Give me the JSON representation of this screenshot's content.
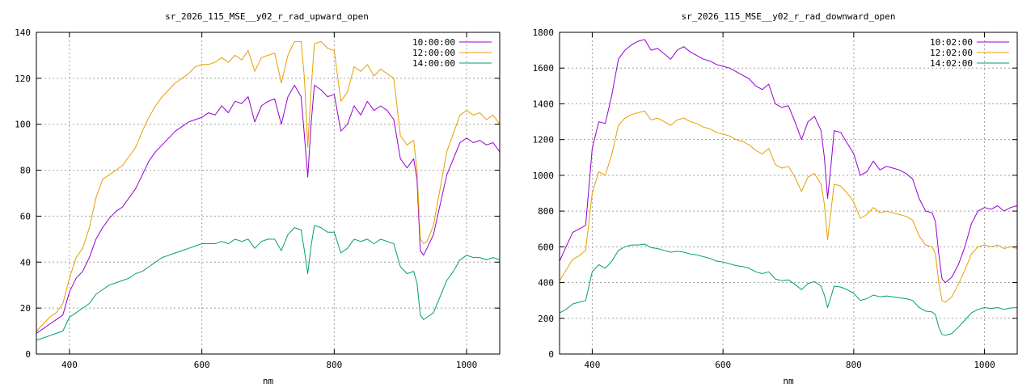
{
  "chart_data": [
    {
      "type": "line",
      "title": "sr_2026_115_MSE__y02_r_rad_upward_open",
      "xlabel": "nm",
      "ylabel": "",
      "xlim": [
        350,
        1050
      ],
      "ylim": [
        0,
        140
      ],
      "xticks": [
        400,
        600,
        800,
        1000
      ],
      "yticks": [
        0,
        20,
        40,
        60,
        80,
        100,
        120,
        140
      ],
      "grid": true,
      "legend_position": "top-right",
      "x": [
        350,
        360,
        370,
        380,
        390,
        400,
        410,
        420,
        430,
        440,
        450,
        460,
        470,
        480,
        490,
        500,
        510,
        520,
        530,
        540,
        550,
        560,
        570,
        580,
        590,
        600,
        610,
        620,
        630,
        640,
        650,
        660,
        670,
        680,
        690,
        700,
        710,
        720,
        730,
        740,
        750,
        755,
        760,
        765,
        770,
        780,
        790,
        800,
        810,
        820,
        830,
        840,
        850,
        860,
        870,
        880,
        890,
        900,
        910,
        920,
        925,
        930,
        935,
        940,
        950,
        960,
        970,
        980,
        990,
        1000,
        1010,
        1020,
        1030,
        1040,
        1050
      ],
      "series": [
        {
          "name": "10:00:00",
          "color": "#9400d3",
          "values": [
            9,
            11,
            13,
            15,
            17,
            27,
            33,
            36,
            42,
            50,
            55,
            59,
            62,
            64,
            68,
            72,
            78,
            84,
            88,
            91,
            94,
            97,
            99,
            101,
            102,
            103,
            105,
            104,
            108,
            105,
            110,
            109,
            112,
            101,
            108,
            110,
            111,
            100,
            112,
            117,
            112,
            95,
            77,
            100,
            117,
            115,
            112,
            113,
            97,
            100,
            108,
            104,
            110,
            106,
            108,
            106,
            102,
            85,
            81,
            85,
            76,
            45,
            43,
            46,
            52,
            65,
            78,
            85,
            92,
            94,
            92,
            93,
            91,
            92,
            88
          ]
        },
        {
          "name": "12:00:00",
          "color": "#e69f00",
          "values": [
            10,
            13,
            16,
            18,
            22,
            33,
            42,
            46,
            55,
            68,
            76,
            78,
            80,
            82,
            86,
            90,
            97,
            103,
            108,
            112,
            115,
            118,
            120,
            122,
            125,
            126,
            126,
            127,
            129,
            127,
            130,
            128,
            132,
            123,
            129,
            130,
            131,
            118,
            130,
            136,
            136,
            120,
            90,
            115,
            135,
            136,
            133,
            132,
            110,
            114,
            125,
            123,
            126,
            121,
            124,
            122,
            120,
            95,
            91,
            93,
            80,
            50,
            48,
            49,
            56,
            72,
            88,
            96,
            104,
            106,
            104,
            105,
            102,
            104,
            100
          ]
        },
        {
          "name": "14:00:00",
          "color": "#009e73",
          "values": [
            6,
            7,
            8,
            9,
            10,
            16,
            18,
            20,
            22,
            26,
            28,
            30,
            31,
            32,
            33,
            35,
            36,
            38,
            40,
            42,
            43,
            44,
            45,
            46,
            47,
            48,
            48,
            48,
            49,
            48,
            50,
            49,
            50,
            46,
            49,
            50,
            50,
            45,
            52,
            55,
            54,
            45,
            35,
            47,
            56,
            55,
            53,
            53,
            44,
            46,
            50,
            49,
            50,
            48,
            50,
            49,
            48,
            38,
            35,
            36,
            31,
            17,
            15,
            16,
            18,
            25,
            32,
            36,
            41,
            43,
            42,
            42,
            41,
            42,
            41
          ]
        }
      ]
    },
    {
      "type": "line",
      "title": "sr_2026_115_MSE__y02_r_rad_downward_open",
      "xlabel": "nm",
      "ylabel": "",
      "xlim": [
        350,
        1050
      ],
      "ylim": [
        0,
        1800
      ],
      "xticks": [
        400,
        600,
        800,
        1000
      ],
      "yticks": [
        0,
        200,
        400,
        600,
        800,
        1000,
        1200,
        1400,
        1600,
        1800
      ],
      "grid": true,
      "legend_position": "top-right",
      "x": [
        350,
        360,
        370,
        380,
        390,
        400,
        410,
        420,
        430,
        440,
        450,
        460,
        470,
        480,
        490,
        500,
        510,
        520,
        530,
        540,
        550,
        560,
        570,
        580,
        590,
        600,
        610,
        620,
        630,
        640,
        650,
        660,
        670,
        680,
        690,
        700,
        710,
        720,
        730,
        740,
        750,
        755,
        760,
        765,
        770,
        780,
        790,
        800,
        810,
        820,
        830,
        840,
        850,
        860,
        870,
        880,
        890,
        900,
        910,
        920,
        925,
        930,
        935,
        940,
        950,
        960,
        970,
        980,
        990,
        1000,
        1010,
        1020,
        1030,
        1040,
        1050
      ],
      "series": [
        {
          "name": "10:02:00",
          "color": "#9400d3",
          "values": [
            520,
            600,
            680,
            700,
            720,
            1150,
            1300,
            1290,
            1450,
            1650,
            1700,
            1730,
            1750,
            1760,
            1700,
            1710,
            1680,
            1650,
            1700,
            1720,
            1690,
            1670,
            1650,
            1640,
            1620,
            1610,
            1600,
            1580,
            1560,
            1540,
            1500,
            1480,
            1510,
            1400,
            1380,
            1390,
            1300,
            1200,
            1300,
            1330,
            1250,
            1100,
            870,
            1050,
            1250,
            1240,
            1180,
            1120,
            1000,
            1020,
            1080,
            1030,
            1050,
            1040,
            1030,
            1010,
            980,
            870,
            800,
            790,
            740,
            560,
            420,
            400,
            430,
            500,
            600,
            730,
            800,
            820,
            810,
            830,
            800,
            820,
            830
          ]
        },
        {
          "name": "12:02:00",
          "color": "#e69f00",
          "values": [
            410,
            470,
            530,
            550,
            580,
            900,
            1020,
            1000,
            1120,
            1280,
            1320,
            1340,
            1350,
            1360,
            1310,
            1320,
            1300,
            1280,
            1310,
            1320,
            1300,
            1290,
            1270,
            1260,
            1240,
            1230,
            1220,
            1200,
            1190,
            1170,
            1140,
            1120,
            1150,
            1060,
            1040,
            1050,
            990,
            910,
            990,
            1010,
            950,
            840,
            640,
            800,
            950,
            940,
            900,
            850,
            760,
            780,
            820,
            790,
            800,
            790,
            780,
            770,
            750,
            660,
            610,
            600,
            560,
            400,
            300,
            290,
            320,
            390,
            470,
            560,
            600,
            610,
            600,
            610,
            590,
            600,
            590
          ]
        },
        {
          "name": "14:02:00",
          "color": "#009e73",
          "values": [
            230,
            250,
            280,
            290,
            300,
            460,
            500,
            480,
            520,
            580,
            600,
            610,
            610,
            615,
            595,
            590,
            580,
            570,
            575,
            570,
            560,
            555,
            545,
            535,
            520,
            515,
            505,
            495,
            490,
            480,
            460,
            450,
            460,
            420,
            410,
            415,
            390,
            360,
            395,
            405,
            380,
            330,
            260,
            320,
            380,
            375,
            360,
            340,
            300,
            310,
            330,
            320,
            325,
            320,
            315,
            310,
            300,
            260,
            240,
            235,
            220,
            150,
            110,
            105,
            115,
            150,
            190,
            230,
            250,
            260,
            255,
            260,
            250,
            258,
            260
          ]
        }
      ]
    }
  ]
}
